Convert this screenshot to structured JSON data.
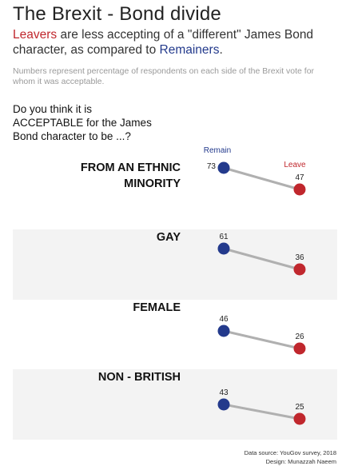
{
  "header": {
    "title": "The Brexit - Bond divide",
    "subtitle_leavers": "Leavers",
    "subtitle_mid": " are less accepting of a \"different\" James Bond character, as compared to ",
    "subtitle_remainers": "Remainers",
    "subtitle_end": ".",
    "note": "Numbers represent percentage of respondents on each side of the Brexit vote for whom it was acceptable."
  },
  "question": {
    "line1": "Do you think it is",
    "line2": "ACCEPTABLE for the James",
    "line3": "Bond character to be ...?"
  },
  "colors": {
    "remain": "#233a8c",
    "leave": "#c0272d",
    "line": "#b0b0b0",
    "band": "#f3f3f3"
  },
  "chart_data": {
    "type": "slope",
    "legend": {
      "remain": "Remain",
      "leave": "Leave"
    },
    "categories": [
      "FROM AN ETHNIC MINORITY",
      "GAY",
      "FEMALE",
      "NON - BRITISH"
    ],
    "category_lines": [
      [
        "FROM AN ETHNIC",
        "MINORITY"
      ],
      [
        "GAY"
      ],
      [
        "FEMALE"
      ],
      [
        "NON - BRITISH"
      ]
    ],
    "series": [
      {
        "name": "Remain",
        "values": [
          73,
          61,
          46,
          43
        ]
      },
      {
        "name": "Leave",
        "values": [
          47,
          36,
          26,
          25
        ]
      }
    ],
    "unit": "%"
  },
  "footer": {
    "source": "Data source: YouGov survey, 2018",
    "design": "Design: Munazzah Naeem"
  }
}
